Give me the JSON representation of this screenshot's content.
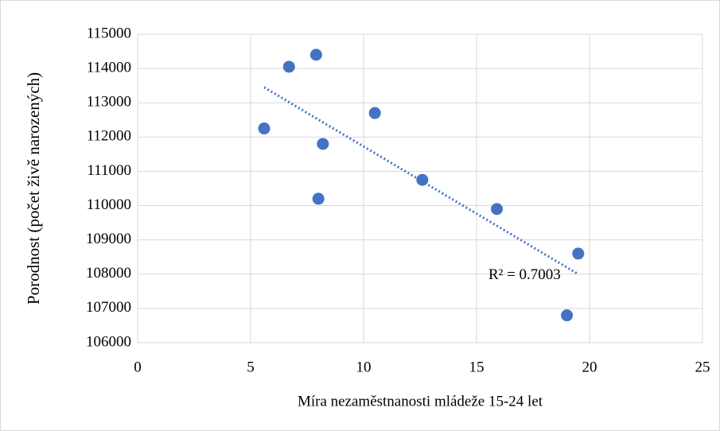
{
  "chart_data": {
    "type": "scatter",
    "x_label": "Míra nezaměstnanosti mládeže 15-24 let",
    "y_label": "Porodnost (počet živě narozených)",
    "x": [
      5.6,
      6.7,
      7.9,
      8.0,
      8.2,
      10.5,
      12.6,
      15.9,
      19.5,
      19.0
    ],
    "series": [
      {
        "name": "Porodnost",
        "color": "#4472c4",
        "values": [
          112250,
          114050,
          114400,
          110200,
          111800,
          112700,
          110750,
          109900,
          108600,
          106800
        ]
      }
    ],
    "trendline": {
      "x": [
        5.6,
        19.5
      ],
      "values": [
        113450,
        108000
      ],
      "color": "#4472c4"
    },
    "annotation": "R² = 0.7003",
    "xlim": [
      0,
      25
    ],
    "xticks": [
      0,
      5,
      10,
      15,
      20,
      25
    ],
    "ylim": [
      106000,
      115000
    ],
    "yticks": [
      106000,
      107000,
      108000,
      109000,
      110000,
      111000,
      112000,
      113000,
      114000,
      115000
    ],
    "grid": true
  }
}
